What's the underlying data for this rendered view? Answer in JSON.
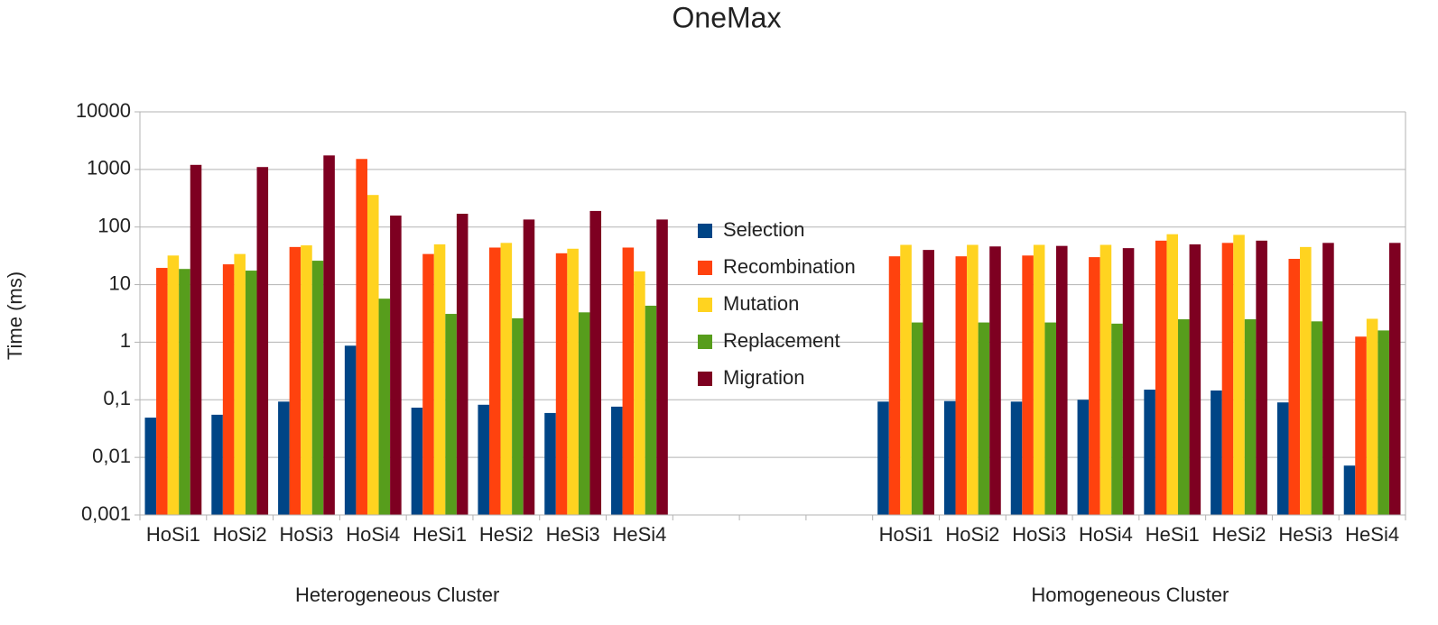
{
  "chart_data": {
    "type": "bar",
    "title": "OneMax",
    "ylabel": "Time (ms)",
    "log_scale": true,
    "grid": true,
    "legend": "center",
    "categories": [
      "HoSi1",
      "HoSi2",
      "HoSi3",
      "HoSi4",
      "HeSi1",
      "HeSi2",
      "HeSi3",
      "HeSi4",
      null,
      null,
      null,
      "HoSi1",
      "HoSi2",
      "HoSi3",
      "HoSi4",
      "HeSi1",
      "HeSi2",
      "HeSi3",
      "HeSi4"
    ],
    "annotations": [
      "Heterogeneous Cluster",
      "Homogeneous Cluster"
    ],
    "ylim": [
      0.001,
      10000
    ],
    "yticks": [
      {
        "value": 0.001,
        "label": "0,001"
      },
      {
        "value": 0.01,
        "label": "0,01"
      },
      {
        "value": 0.1,
        "label": "0,1"
      },
      1,
      10,
      100,
      1000,
      10000
    ],
    "series": [
      {
        "name": "Selection",
        "color": "#004586",
        "values": [
          0.049,
          0.055,
          0.093,
          0.87,
          0.073,
          0.082,
          0.059,
          0.076,
          null,
          null,
          null,
          0.093,
          0.095,
          0.093,
          0.1,
          0.15,
          0.145,
          0.09,
          0.0072
        ]
      },
      {
        "name": "Recombination",
        "color": "#ff420e",
        "values": [
          19.5,
          22.5,
          45,
          1520,
          34,
          44,
          35,
          44,
          null,
          null,
          null,
          31,
          31,
          32,
          30,
          58,
          53,
          28,
          1.25
        ]
      },
      {
        "name": "Mutation",
        "color": "#ffd320",
        "values": [
          32,
          34,
          48,
          360,
          50,
          53,
          42,
          17,
          null,
          null,
          null,
          49,
          49,
          49,
          49,
          75,
          73,
          45,
          2.55
        ]
      },
      {
        "name": "Replacement",
        "color": "#579d1c",
        "values": [
          18.7,
          17.5,
          26,
          5.7,
          3.1,
          2.6,
          3.3,
          4.3,
          null,
          null,
          null,
          2.2,
          2.2,
          2.2,
          2.1,
          2.5,
          2.5,
          2.3,
          1.6
        ]
      },
      {
        "name": "Migration",
        "color": "#7e0021",
        "values": [
          1200,
          1100,
          1750,
          158,
          170,
          135,
          190,
          135,
          null,
          null,
          null,
          40,
          46,
          47,
          43,
          50,
          58,
          53,
          53
        ]
      }
    ]
  }
}
